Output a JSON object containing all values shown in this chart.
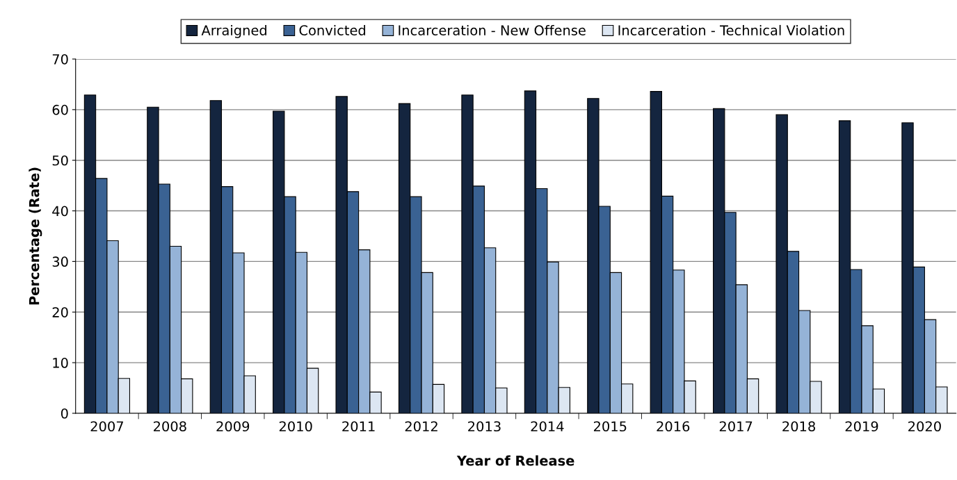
{
  "chart_data": {
    "type": "bar",
    "xlabel": "Year of Release",
    "ylabel": "Percentage (Rate)",
    "categories": [
      "2007",
      "2008",
      "2009",
      "2010",
      "2011",
      "2012",
      "2013",
      "2014",
      "2015",
      "2016",
      "2017",
      "2018",
      "2019",
      "2020"
    ],
    "series": [
      {
        "name": "Arraigned",
        "color": "#14253f",
        "values": [
          62.9,
          60.5,
          61.8,
          59.7,
          62.6,
          61.2,
          62.9,
          63.7,
          62.2,
          63.6,
          60.2,
          59.0,
          57.8,
          57.4
        ]
      },
      {
        "name": "Convicted",
        "color": "#3a6293",
        "values": [
          46.4,
          45.3,
          44.8,
          42.8,
          43.8,
          42.8,
          44.9,
          44.4,
          40.9,
          42.9,
          39.7,
          32.0,
          28.4,
          28.9
        ]
      },
      {
        "name": "Incarceration - New Offense",
        "color": "#95b3d7",
        "values": [
          34.1,
          33.0,
          31.7,
          31.8,
          32.3,
          27.8,
          32.7,
          29.9,
          27.8,
          28.3,
          25.4,
          20.3,
          17.3,
          18.5
        ]
      },
      {
        "name": "Incarceration - Technical Violation",
        "color": "#dce6f2",
        "values": [
          6.9,
          6.8,
          7.4,
          8.9,
          4.2,
          5.7,
          5.0,
          5.1,
          5.8,
          6.4,
          6.8,
          6.3,
          4.8,
          5.2
        ]
      }
    ],
    "ylim": [
      0,
      70
    ],
    "yticks": [
      0,
      10,
      20,
      30,
      40,
      50,
      60,
      70
    ],
    "grid": "y",
    "legend": "top"
  }
}
